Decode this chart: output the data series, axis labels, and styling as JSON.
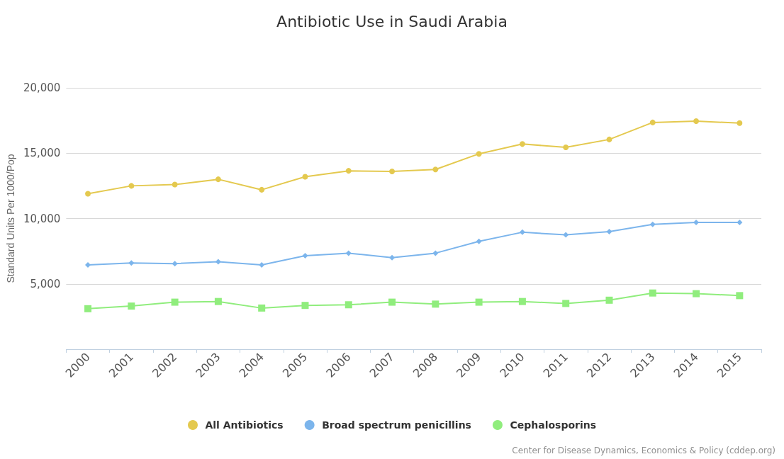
{
  "chart_data": {
    "type": "line",
    "title": "Antibiotic Use in Saudi Arabia",
    "ylabel": "Standard Units Per 1000/Pop",
    "categories": [
      "2000",
      "2001",
      "2002",
      "2003",
      "2004",
      "2005",
      "2006",
      "2007",
      "2008",
      "2009",
      "2010",
      "2011",
      "2012",
      "2013",
      "2014",
      "2015"
    ],
    "series": [
      {
        "name": "All Antibiotics",
        "color": "#e4c94f",
        "marker": "circle",
        "values": [
          11900,
          12500,
          12600,
          13000,
          12200,
          13200,
          13650,
          13600,
          13750,
          14950,
          15700,
          15450,
          16050,
          17350,
          17450,
          17300
        ]
      },
      {
        "name": "Broad spectrum penicillins",
        "color": "#7cb5ec",
        "marker": "diamond",
        "values": [
          6450,
          6600,
          6550,
          6700,
          6450,
          7150,
          7350,
          7000,
          7350,
          8250,
          8950,
          8750,
          9000,
          9550,
          9700,
          9700
        ]
      },
      {
        "name": "Cephalosporins",
        "color": "#90ed7d",
        "marker": "square",
        "values": [
          3100,
          3300,
          3600,
          3650,
          3150,
          3350,
          3400,
          3600,
          3450,
          3600,
          3650,
          3500,
          3750,
          4300,
          4250,
          4100
        ]
      }
    ],
    "ylim": [
      0,
      20000
    ],
    "yticks": [
      {
        "value": 0,
        "label": null
      },
      {
        "value": 5000,
        "label": "5,000"
      },
      {
        "value": 10000,
        "label": "10,000"
      },
      {
        "value": 15000,
        "label": "15,000"
      },
      {
        "value": 20000,
        "label": "20,000"
      }
    ],
    "grid": "y",
    "legend": "bottom",
    "line_style": "solid",
    "annotations": [
      "Center for Disease Dynamics, Economics & Policy (cddep.org)"
    ]
  }
}
